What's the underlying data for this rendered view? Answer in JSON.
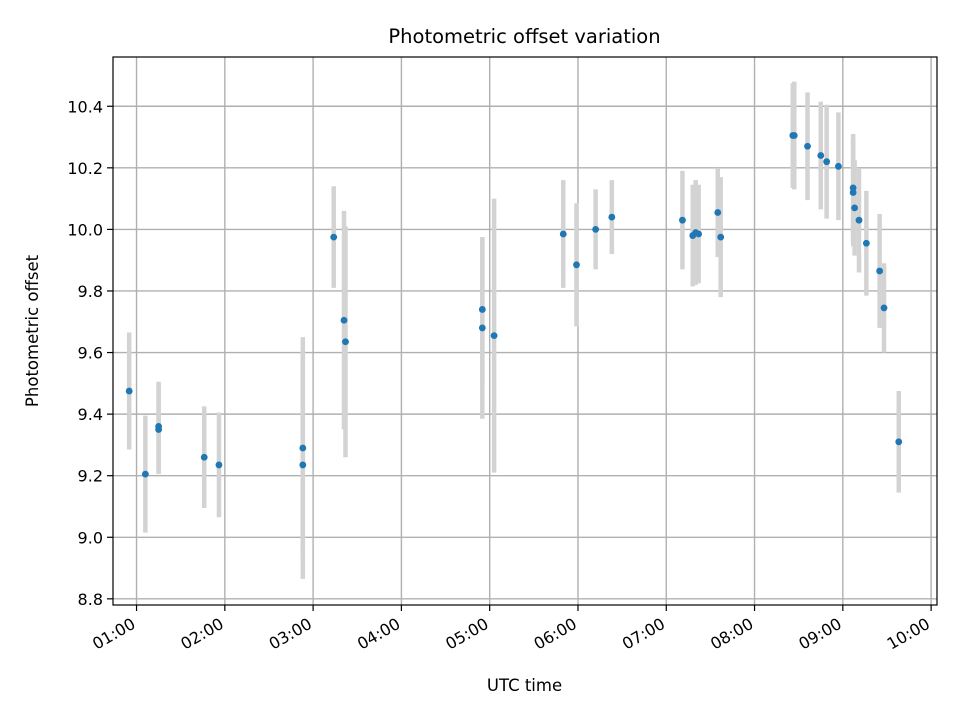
{
  "chart_data": {
    "type": "scatter",
    "title": "Photometric offset variation",
    "xlabel": "UTC time",
    "ylabel": "Photometric offset",
    "xlim": [
      "00:44",
      "10:04"
    ],
    "ylim": [
      8.78,
      10.56
    ],
    "grid": true,
    "x_ticks": [
      "01:00",
      "02:00",
      "03:00",
      "04:00",
      "05:00",
      "06:00",
      "07:00",
      "08:00",
      "09:00",
      "10:00"
    ],
    "y_ticks": [
      "8.8",
      "9.0",
      "9.2",
      "9.4",
      "9.6",
      "9.8",
      "10.0",
      "10.2",
      "10.4"
    ],
    "colors": {
      "point": "#1f77b4",
      "errorbar": "#d3d3d3",
      "grid": "#b0b0b0"
    },
    "series": [
      {
        "points": [
          {
            "x": "00:55",
            "y": 9.475,
            "err": 0.19
          },
          {
            "x": "01:06",
            "y": 9.205,
            "err": 0.19
          },
          {
            "x": "01:15",
            "y": 9.36,
            "err": 0.145
          },
          {
            "x": "01:15",
            "y": 9.35,
            "err": 0.145
          },
          {
            "x": "01:46",
            "y": 9.26,
            "err": 0.165
          },
          {
            "x": "01:56",
            "y": 9.235,
            "err": 0.17
          },
          {
            "x": "02:53",
            "y": 9.29,
            "err": 0.36
          },
          {
            "x": "02:53",
            "y": 9.235,
            "err": 0.37
          },
          {
            "x": "03:14",
            "y": 9.975,
            "err": 0.165
          },
          {
            "x": "03:21",
            "y": 9.705,
            "err": 0.355
          },
          {
            "x": "03:22",
            "y": 9.635,
            "err": 0.375
          },
          {
            "x": "04:55",
            "y": 9.74,
            "err": 0.235
          },
          {
            "x": "04:55",
            "y": 9.68,
            "err": 0.295
          },
          {
            "x": "05:03",
            "y": 9.655,
            "err": 0.445
          },
          {
            "x": "05:50",
            "y": 9.985,
            "err": 0.175
          },
          {
            "x": "05:59",
            "y": 9.885,
            "err": 0.2
          },
          {
            "x": "06:12",
            "y": 10.0,
            "err": 0.13
          },
          {
            "x": "06:23",
            "y": 10.04,
            "err": 0.12
          },
          {
            "x": "07:11",
            "y": 10.03,
            "err": 0.16
          },
          {
            "x": "07:18",
            "y": 9.98,
            "err": 0.165
          },
          {
            "x": "07:20",
            "y": 9.99,
            "err": 0.17
          },
          {
            "x": "07:22",
            "y": 9.985,
            "err": 0.16
          },
          {
            "x": "07:35",
            "y": 10.055,
            "err": 0.145
          },
          {
            "x": "07:37",
            "y": 9.975,
            "err": 0.195
          },
          {
            "x": "08:26",
            "y": 10.305,
            "err": 0.17
          },
          {
            "x": "08:27",
            "y": 10.305,
            "err": 0.175
          },
          {
            "x": "08:36",
            "y": 10.27,
            "err": 0.175
          },
          {
            "x": "08:45",
            "y": 10.24,
            "err": 0.175
          },
          {
            "x": "08:49",
            "y": 10.22,
            "err": 0.185
          },
          {
            "x": "08:57",
            "y": 10.205,
            "err": 0.175
          },
          {
            "x": "09:07",
            "y": 10.135,
            "err": 0.175
          },
          {
            "x": "09:07",
            "y": 10.12,
            "err": 0.175
          },
          {
            "x": "09:08",
            "y": 10.07,
            "err": 0.155
          },
          {
            "x": "09:11",
            "y": 10.03,
            "err": 0.17
          },
          {
            "x": "09:16",
            "y": 9.955,
            "err": 0.17
          },
          {
            "x": "09:25",
            "y": 9.865,
            "err": 0.185
          },
          {
            "x": "09:28",
            "y": 9.745,
            "err": 0.145
          },
          {
            "x": "09:38",
            "y": 9.31,
            "err": 0.165
          }
        ]
      }
    ]
  }
}
